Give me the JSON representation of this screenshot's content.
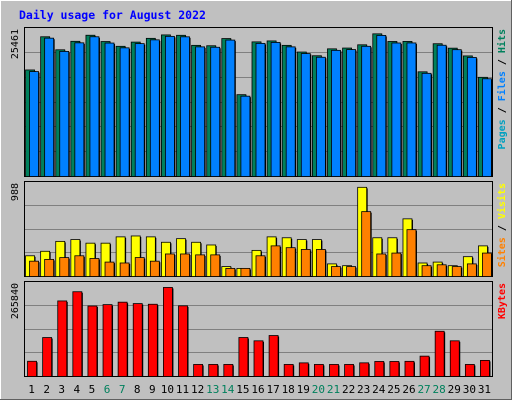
{
  "chart_data": {
    "type": "bar",
    "title": "Daily usage for August 2022",
    "categories": [
      "1",
      "2",
      "3",
      "4",
      "5",
      "6",
      "7",
      "8",
      "9",
      "10",
      "11",
      "12",
      "13",
      "14",
      "15",
      "16",
      "17",
      "18",
      "19",
      "20",
      "21",
      "22",
      "23",
      "24",
      "25",
      "26",
      "27",
      "28",
      "29",
      "30",
      "31"
    ],
    "weekend_days": [
      "6",
      "7",
      "13",
      "14",
      "20",
      "21",
      "27",
      "28"
    ],
    "colors": {
      "background": "#c0c0c0",
      "title": "#0000ff",
      "weekday_label": "#000000",
      "weekend_label": "#00805c",
      "pages": "#00a0c0",
      "files": "#0080ff",
      "hits": "#00805c",
      "sites": "#ff8000",
      "visits": "#ffff00",
      "kbytes": "#ff0000",
      "separator": "#000000"
    },
    "panels": [
      {
        "id": "hits-files-pages",
        "max_label": "25461",
        "max": 25461,
        "label_parts": [
          {
            "text": "Pages",
            "color_key": "pages"
          },
          {
            "text": " / ",
            "color_key": "separator"
          },
          {
            "text": "Files",
            "color_key": "files"
          },
          {
            "text": " / ",
            "color_key": "separator"
          },
          {
            "text": "Hits",
            "color_key": "hits"
          }
        ],
        "series": [
          {
            "name": "Hits",
            "color_key": "hits",
            "values": [
              18970,
              24880,
              22560,
              24070,
              25150,
              24030,
              23180,
              23930,
              24600,
              25210,
              25140,
              23350,
              23280,
              24560,
              14570,
              23970,
              24140,
              23350,
              22160,
              21500,
              22730,
              22870,
              23450,
              25400,
              24040,
              24050,
              18640,
              23640,
              22850,
              21470,
              17660
            ]
          },
          {
            "name": "Files",
            "color_key": "files",
            "values": [
              18680,
              24630,
              22270,
              23800,
              24880,
              23760,
              22910,
              23660,
              24330,
              24950,
              24870,
              23080,
              23010,
              24290,
              14300,
              23700,
              23870,
              23080,
              21890,
              21230,
              22460,
              22600,
              23180,
              25120,
              23770,
              23780,
              18370,
              23370,
              22580,
              21200,
              17400
            ]
          }
        ]
      },
      {
        "id": "visits-sites",
        "max_label": "988",
        "max": 988,
        "label_parts": [
          {
            "text": "Sites",
            "color_key": "sites"
          },
          {
            "text": " / ",
            "color_key": "separator"
          },
          {
            "text": "Visits",
            "color_key": "visits"
          }
        ],
        "series": [
          {
            "name": "Visits",
            "color_key": "visits",
            "values": [
              230,
              280,
              390,
              410,
              370,
              370,
              440,
              450,
              440,
              380,
              420,
              380,
              350,
              110,
              90,
              290,
              440,
              430,
              410,
              410,
              140,
              120,
              990,
              430,
              430,
              640,
              150,
              160,
              120,
              220,
              340
            ]
          },
          {
            "name": "Sites",
            "color_key": "sites",
            "values": [
              170,
              190,
              210,
              230,
              200,
              160,
              150,
              210,
              170,
              250,
              250,
              240,
              240,
              90,
              90,
              230,
              340,
              320,
              300,
              300,
              110,
              110,
              720,
              250,
              260,
              520,
              120,
              130,
              110,
              140,
              260
            ]
          }
        ]
      },
      {
        "id": "kbytes",
        "max_label": "265840",
        "max": 265840,
        "label_parts": [
          {
            "text": "KBytes",
            "color_key": "kbytes"
          }
        ],
        "series": [
          {
            "name": "KBytes",
            "color_key": "kbytes",
            "values": [
              45500,
              116400,
              225700,
              253200,
              210600,
              214700,
              222000,
              217800,
              215800,
              266000,
              211100,
              36000,
              36000,
              36000,
              116500,
              106600,
              122400,
              36000,
              40700,
              36000,
              36000,
              36000,
              40800,
              44900,
              44900,
              45300,
              60800,
              135100,
              106600,
              36000,
              48100
            ]
          }
        ]
      }
    ]
  }
}
